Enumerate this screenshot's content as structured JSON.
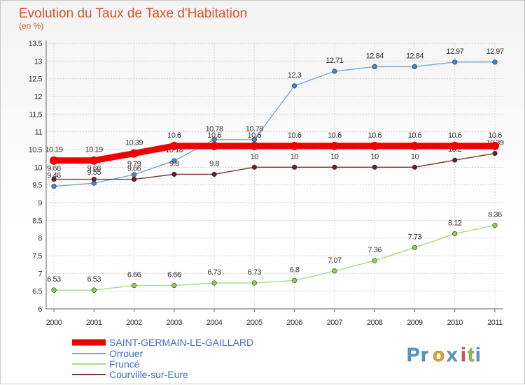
{
  "chart_data": {
    "type": "line",
    "title": "Evolution du Taux de Taxe d'Habitation",
    "subtitle": "(en %)",
    "xlabel": "",
    "ylabel": "",
    "ylim": [
      6,
      13.5
    ],
    "yticks": [
      "6",
      "6.5",
      "7",
      "7.5",
      "8",
      "8.5",
      "9",
      "9.5",
      "10",
      "10.5",
      "11",
      "11.5",
      "12",
      "12.5",
      "13",
      "13.5"
    ],
    "ytick_values": [
      6,
      6.5,
      7,
      7.5,
      8,
      8.5,
      9,
      9.5,
      10,
      10.5,
      11,
      11.5,
      12,
      12.5,
      13,
      13.5
    ],
    "categories": [
      "2000",
      "2001",
      "2002",
      "2003",
      "2004",
      "2005",
      "2006",
      "2007",
      "2008",
      "2009",
      "2010",
      "2011"
    ],
    "grid": true,
    "legend_position": "bottom-left",
    "series": [
      {
        "name": "SAINT-GERMAIN-LE-GAILLARD",
        "values": [
          10.19,
          10.19,
          10.39,
          10.6,
          10.6,
          10.6,
          10.6,
          10.6,
          10.6,
          10.6,
          10.6,
          10.6
        ],
        "labels": [
          "10.19",
          "10.19",
          "10.39",
          "10.6",
          "10.6",
          "10.6",
          "10.6",
          "10.6",
          "10.6",
          "10.6",
          "10.6",
          "10.6"
        ],
        "color": "#ee0000",
        "marker_color": "#ee0000",
        "emphasis": true
      },
      {
        "name": "Orrouer",
        "values": [
          9.46,
          9.55,
          9.79,
          10.18,
          10.78,
          10.78,
          12.3,
          12.71,
          12.84,
          12.84,
          12.97,
          12.97
        ],
        "labels": [
          "9.46",
          "9.55",
          "9.79",
          "10.18",
          "10.78",
          "10.78",
          "12.3",
          "12.71",
          "12.84",
          "12.84",
          "12.97",
          "12.97"
        ],
        "color": "#7aa8d4",
        "marker_color": "#3f88d0"
      },
      {
        "name": "Fruncé",
        "values": [
          6.53,
          6.53,
          6.66,
          6.66,
          6.73,
          6.73,
          6.8,
          7.07,
          7.36,
          7.73,
          8.12,
          8.36
        ],
        "labels": [
          "6.53",
          "6.53",
          "6.66",
          "6.66",
          "6.73",
          "6.73",
          "6.8",
          "7.07",
          "7.36",
          "7.73",
          "8.12",
          "8.36"
        ],
        "color": "#a6dc7e",
        "marker_color": "#8bd04f"
      },
      {
        "name": "Courville-sur-Eure",
        "values": [
          9.66,
          9.66,
          9.66,
          9.8,
          9.8,
          10,
          10,
          10,
          10,
          10,
          10.2,
          10.39
        ],
        "labels": [
          "9.66",
          "9.66",
          "9.66",
          "9.8",
          "9.8",
          "10",
          "10",
          "10",
          "10",
          "10",
          "10.2",
          "10.39"
        ],
        "color": "#7a3434",
        "marker_color": "#6b1f1f"
      }
    ]
  },
  "branding": {
    "logo_letters": [
      "P",
      "r",
      "o",
      "x",
      "i",
      "t",
      "i"
    ],
    "logo_colors": [
      "#4e9ad8",
      "#4e9ad8",
      "#f0a020",
      "#4e9ad8",
      "#e05050",
      "#8bc34a",
      "#4e9ad8"
    ]
  }
}
